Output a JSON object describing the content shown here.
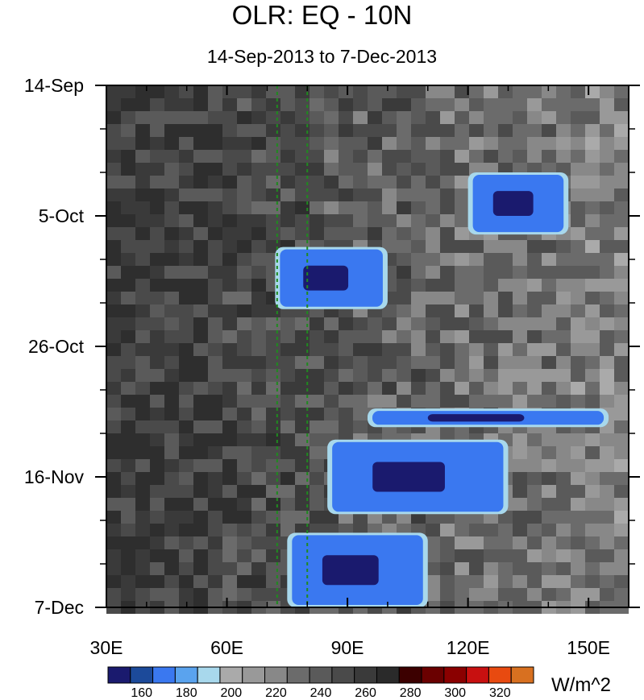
{
  "chart_data": {
    "type": "heatmap",
    "title": "OLR: EQ - 10N",
    "subtitle": "14-Sep-2013 to 7-Dec-2013",
    "x_ticks": [
      "30E",
      "60E",
      "90E",
      "120E",
      "150E"
    ],
    "x_tick_values": [
      30,
      60,
      90,
      120,
      150
    ],
    "xlim": [
      30,
      160
    ],
    "y_ticks": [
      "14-Sep",
      "5-Oct",
      "26-Oct",
      "16-Nov",
      "7-Dec"
    ],
    "y_tick_values": [
      "2013-09-14",
      "2013-10-05",
      "2013-10-26",
      "2013-11-16",
      "2013-12-07"
    ],
    "ylim": [
      "2013-09-14",
      "2013-12-07"
    ],
    "y_direction": "top-to-bottom",
    "colorbar": {
      "units": "W/m^2",
      "labels": [
        "160",
        "180",
        "200",
        "220",
        "240",
        "260",
        "280",
        "300",
        "320"
      ],
      "levels": [
        150,
        160,
        170,
        180,
        190,
        200,
        210,
        220,
        230,
        240,
        250,
        260,
        270,
        280,
        290,
        300,
        310,
        320,
        330
      ],
      "colors": [
        "#1a1a6e",
        "#1c4a9a",
        "#3a78f0",
        "#5aa3ee",
        "#a8d8ec",
        "#aaaaaa",
        "#999999",
        "#888888",
        "#6b6b6b",
        "#5a5a5a",
        "#4a4a4a",
        "#3a3a3a",
        "#2a2a2a",
        "#3c0000",
        "#6a0000",
        "#8a0000",
        "#c81010",
        "#e84a10",
        "#d87020"
      ]
    },
    "reference_lines_x": [
      72.5,
      80
    ],
    "missing_data_color": "#c8c8c8",
    "convective_features": [
      {
        "lon_start": 72,
        "lon_end": 100,
        "date_start": "2013-10-10",
        "date_end": "2013-10-20"
      },
      {
        "lon_start": 95,
        "lon_end": 155,
        "date_start": "2013-11-05",
        "date_end": "2013-11-08"
      },
      {
        "lon_start": 75,
        "lon_end": 110,
        "date_start": "2013-11-25",
        "date_end": "2013-12-07"
      },
      {
        "lon_start": 120,
        "lon_end": 145,
        "date_start": "2013-09-28",
        "date_end": "2013-10-08"
      },
      {
        "lon_start": 85,
        "lon_end": 130,
        "date_start": "2013-11-10",
        "date_end": "2013-11-22"
      }
    ]
  }
}
